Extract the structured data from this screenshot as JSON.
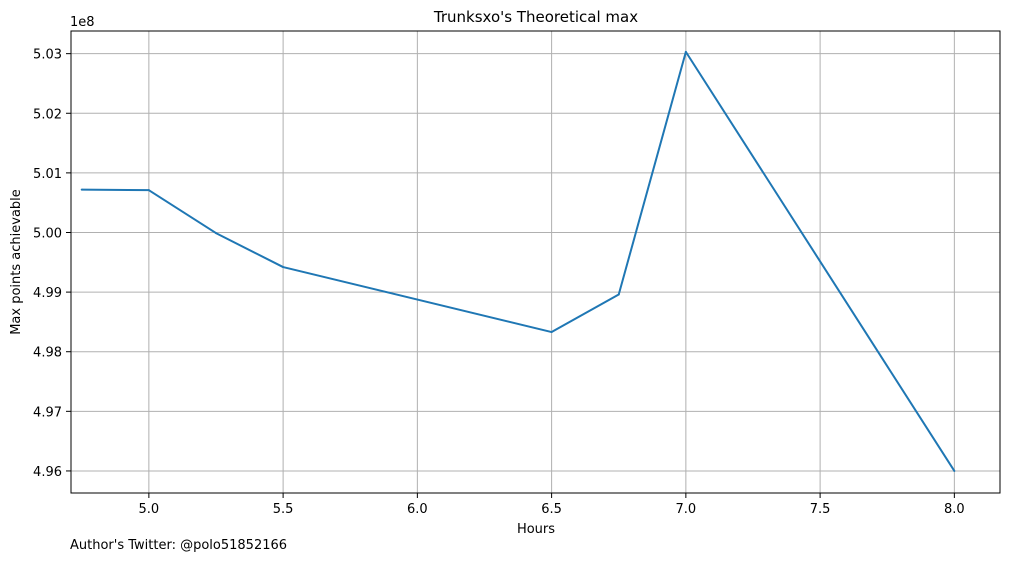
{
  "chart_data": {
    "type": "line",
    "title": "Trunksxo's Theoretical max",
    "xlabel": "Hours",
    "ylabel": "Max points achievable",
    "y_offset_label": "1e8",
    "x_ticks": [
      5.0,
      5.5,
      6.0,
      6.5,
      7.0,
      7.5,
      8.0
    ],
    "x_tick_labels": [
      "5.0",
      "5.5",
      "6.0",
      "6.5",
      "7.0",
      "7.5",
      "8.0"
    ],
    "y_ticks": [
      4.96,
      4.97,
      4.98,
      4.99,
      5.0,
      5.01,
      5.02,
      5.03
    ],
    "y_tick_labels": [
      "4.96",
      "4.97",
      "4.98",
      "4.99",
      "5.00",
      "5.01",
      "5.02",
      "5.03"
    ],
    "xlim": [
      4.71,
      8.17
    ],
    "ylim": [
      4.9563,
      5.0338
    ],
    "grid": true,
    "series": [
      {
        "color": "#1f77b4",
        "x": [
          4.75,
          5.0,
          5.25,
          5.5,
          6.5,
          6.75,
          7.0,
          8.0
        ],
        "y": [
          5.0072,
          5.0071,
          4.9999,
          4.9942,
          4.9833,
          4.9896,
          5.0303,
          4.96
        ]
      }
    ]
  },
  "footer": {
    "note": "Author's Twitter: @polo51852166"
  }
}
